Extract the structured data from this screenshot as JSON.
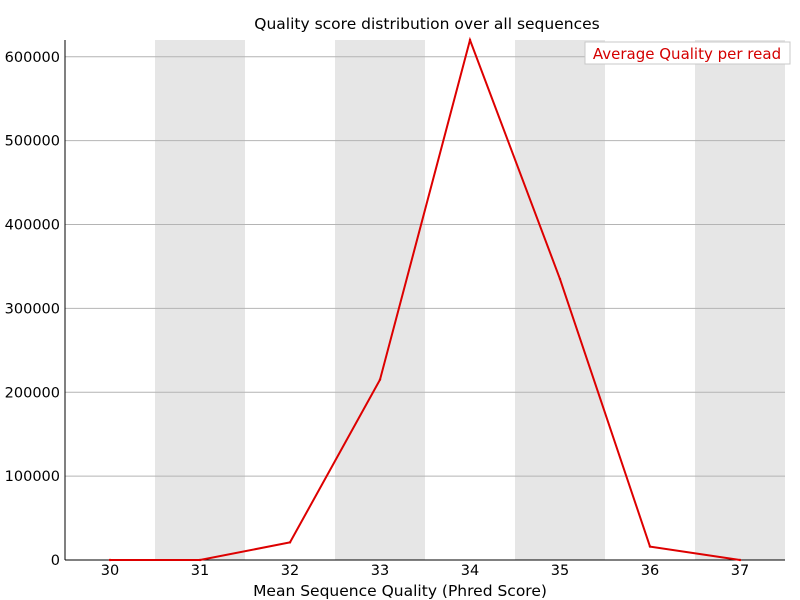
{
  "chart_data": {
    "type": "line",
    "title": "Quality score distribution over all sequences",
    "xlabel": "Mean Sequence Quality (Phred Score)",
    "ylabel": "",
    "categories": [
      "30",
      "31",
      "32",
      "33",
      "34",
      "35",
      "36",
      "37"
    ],
    "series": [
      {
        "name": "Average Quality per read",
        "values": [
          0,
          0,
          21000,
          215000,
          620000,
          335000,
          16000,
          0
        ]
      }
    ],
    "yticks": [
      0,
      100000,
      200000,
      300000,
      400000,
      500000,
      600000
    ],
    "ylim": [
      0,
      620000
    ],
    "grid": true,
    "legend": "top-right",
    "colors": {
      "line": "#dd0000",
      "band": "#e6e6e6",
      "grid": "#b4b4b4"
    }
  }
}
